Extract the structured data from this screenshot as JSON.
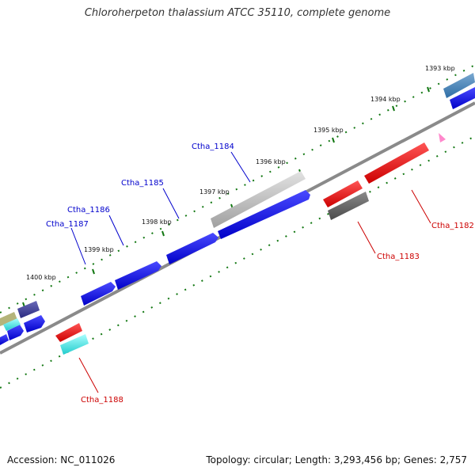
{
  "title": "Chloroherpeton thalassium ATCC 35110, complete genome",
  "footer": {
    "accession": "Accession: NC_011026",
    "summary": "Topology: circular; Length: 3,293,456 bp; Genes: 2,757"
  },
  "scale_labels": [
    "1393 kbp",
    "1394 kbp",
    "1395 kbp",
    "1396 kbp",
    "1397 kbp",
    "1398 kbp",
    "1399 kbp",
    "1400 kbp"
  ],
  "gene_labels": [
    {
      "name": "Ctha_1184",
      "strand": "forward",
      "color": "#0000cc"
    },
    {
      "name": "Ctha_1185",
      "strand": "forward",
      "color": "#0000cc"
    },
    {
      "name": "Ctha_1186",
      "strand": "forward",
      "color": "#0000cc"
    },
    {
      "name": "Ctha_1187",
      "strand": "forward",
      "color": "#0000cc"
    },
    {
      "name": "Ctha_1182",
      "strand": "reverse",
      "color": "#cc0000"
    },
    {
      "name": "Ctha_1183",
      "strand": "reverse",
      "color": "#cc0000"
    },
    {
      "name": "Ctha_1188",
      "strand": "reverse",
      "color": "#cc0000"
    }
  ],
  "colors": {
    "forward_gene": "#0a0ae6",
    "reverse_gene": "#e00a0a",
    "backbone": "#8a8a8a",
    "tick": "#117711",
    "pseudo_gene": "#bdbdbd",
    "rna_gene": "#22dddd"
  }
}
